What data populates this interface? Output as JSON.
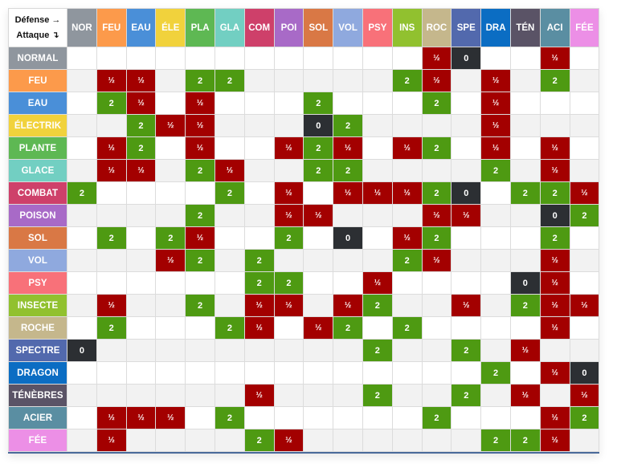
{
  "corner": {
    "defense_label": "Défense →",
    "attack_label": "Attaque ↴"
  },
  "columns": [
    {
      "label": "NOR",
      "color": "#8f969e"
    },
    {
      "label": "FEU",
      "color": "#fc9a4b"
    },
    {
      "label": "EAU",
      "color": "#4a8fd8"
    },
    {
      "label": "ÉLE",
      "color": "#f1d23c"
    },
    {
      "label": "PLA",
      "color": "#5eb853"
    },
    {
      "label": "GLA",
      "color": "#72cfc2"
    },
    {
      "label": "COM",
      "color": "#ce406a"
    },
    {
      "label": "POI",
      "color": "#a86ac7"
    },
    {
      "label": "SOL",
      "color": "#d97845"
    },
    {
      "label": "VOL",
      "color": "#8fa9de"
    },
    {
      "label": "PSY",
      "color": "#f87179"
    },
    {
      "label": "INS",
      "color": "#91c12f"
    },
    {
      "label": "ROC",
      "color": "#c5b78c"
    },
    {
      "label": "SPE",
      "color": "#5269ad"
    },
    {
      "label": "DRA",
      "color": "#0b6dc3"
    },
    {
      "label": "TÉN",
      "color": "#5a5366"
    },
    {
      "label": "ACI",
      "color": "#5a8ea2"
    },
    {
      "label": "FÉE",
      "color": "#ec8fe6"
    }
  ],
  "rows": [
    {
      "label": "NORMAL",
      "color": "#8f969e",
      "cells": [
        "",
        "",
        "",
        "",
        "",
        "",
        "",
        "",
        "",
        "",
        "",
        "",
        "½",
        "0",
        "",
        "",
        "½",
        ""
      ]
    },
    {
      "label": "FEU",
      "color": "#fc9a4b",
      "cells": [
        "",
        "½",
        "½",
        "",
        "2",
        "2",
        "",
        "",
        "",
        "",
        "",
        "2",
        "½",
        "",
        "½",
        "",
        "2",
        ""
      ]
    },
    {
      "label": "EAU",
      "color": "#4a8fd8",
      "cells": [
        "",
        "2",
        "½",
        "",
        "½",
        "",
        "",
        "",
        "2",
        "",
        "",
        "",
        "2",
        "",
        "½",
        "",
        "",
        ""
      ]
    },
    {
      "label": "ÉLECTRIK",
      "color": "#f1d23c",
      "cells": [
        "",
        "",
        "2",
        "½",
        "½",
        "",
        "",
        "",
        "0",
        "2",
        "",
        "",
        "",
        "",
        "½",
        "",
        "",
        ""
      ]
    },
    {
      "label": "PLANTE",
      "color": "#5eb853",
      "cells": [
        "",
        "½",
        "2",
        "",
        "½",
        "",
        "",
        "½",
        "2",
        "½",
        "",
        "½",
        "2",
        "",
        "½",
        "",
        "½",
        ""
      ]
    },
    {
      "label": "GLACE",
      "color": "#72cfc2",
      "cells": [
        "",
        "½",
        "½",
        "",
        "2",
        "½",
        "",
        "",
        "2",
        "2",
        "",
        "",
        "",
        "",
        "2",
        "",
        "½",
        ""
      ]
    },
    {
      "label": "COMBAT",
      "color": "#ce406a",
      "cells": [
        "2",
        "",
        "",
        "",
        "",
        "2",
        "",
        "½",
        "",
        "½",
        "½",
        "½",
        "2",
        "0",
        "",
        "2",
        "2",
        "½"
      ]
    },
    {
      "label": "POISON",
      "color": "#a86ac7",
      "cells": [
        "",
        "",
        "",
        "",
        "2",
        "",
        "",
        "½",
        "½",
        "",
        "",
        "",
        "½",
        "½",
        "",
        "",
        "0",
        "2"
      ]
    },
    {
      "label": "SOL",
      "color": "#d97845",
      "cells": [
        "",
        "2",
        "",
        "2",
        "½",
        "",
        "",
        "2",
        "",
        "0",
        "",
        "½",
        "2",
        "",
        "",
        "",
        "2",
        ""
      ]
    },
    {
      "label": "VOL",
      "color": "#8fa9de",
      "cells": [
        "",
        "",
        "",
        "½",
        "2",
        "",
        "2",
        "",
        "",
        "",
        "",
        "2",
        "½",
        "",
        "",
        "",
        "½",
        ""
      ]
    },
    {
      "label": "PSY",
      "color": "#f87179",
      "cells": [
        "",
        "",
        "",
        "",
        "",
        "",
        "2",
        "2",
        "",
        "",
        "½",
        "",
        "",
        "",
        "",
        "0",
        "½",
        ""
      ]
    },
    {
      "label": "INSECTE",
      "color": "#91c12f",
      "cells": [
        "",
        "½",
        "",
        "",
        "2",
        "",
        "½",
        "½",
        "",
        "½",
        "2",
        "",
        "",
        "½",
        "",
        "2",
        "½",
        "½"
      ]
    },
    {
      "label": "ROCHE",
      "color": "#c5b78c",
      "cells": [
        "",
        "2",
        "",
        "",
        "",
        "2",
        "½",
        "",
        "½",
        "2",
        "",
        "2",
        "",
        "",
        "",
        "",
        "½",
        ""
      ]
    },
    {
      "label": "SPECTRE",
      "color": "#5269ad",
      "cells": [
        "0",
        "",
        "",
        "",
        "",
        "",
        "",
        "",
        "",
        "",
        "2",
        "",
        "",
        "2",
        "",
        "½",
        "",
        ""
      ]
    },
    {
      "label": "DRAGON",
      "color": "#0b6dc3",
      "cells": [
        "",
        "",
        "",
        "",
        "",
        "",
        "",
        "",
        "",
        "",
        "",
        "",
        "",
        "",
        "2",
        "",
        "½",
        "0"
      ]
    },
    {
      "label": "TÉNÈBRES",
      "color": "#5a5366",
      "cells": [
        "",
        "",
        "",
        "",
        "",
        "",
        "½",
        "",
        "",
        "",
        "2",
        "",
        "",
        "2",
        "",
        "½",
        "",
        "½"
      ]
    },
    {
      "label": "ACIER",
      "color": "#5a8ea2",
      "cells": [
        "",
        "½",
        "½",
        "½",
        "",
        "2",
        "",
        "",
        "",
        "",
        "",
        "",
        "2",
        "",
        "",
        "",
        "½",
        "2"
      ]
    },
    {
      "label": "FÉE",
      "color": "#ec8fe6",
      "cells": [
        "",
        "½",
        "",
        "",
        "",
        "",
        "2",
        "½",
        "",
        "",
        "",
        "",
        "",
        "",
        "2",
        "2",
        "½",
        ""
      ]
    }
  ],
  "legend_colors": {
    "super_effective": "#4e9a12",
    "not_very_effective": "#a30000",
    "no_effect": "#2c2f33"
  }
}
